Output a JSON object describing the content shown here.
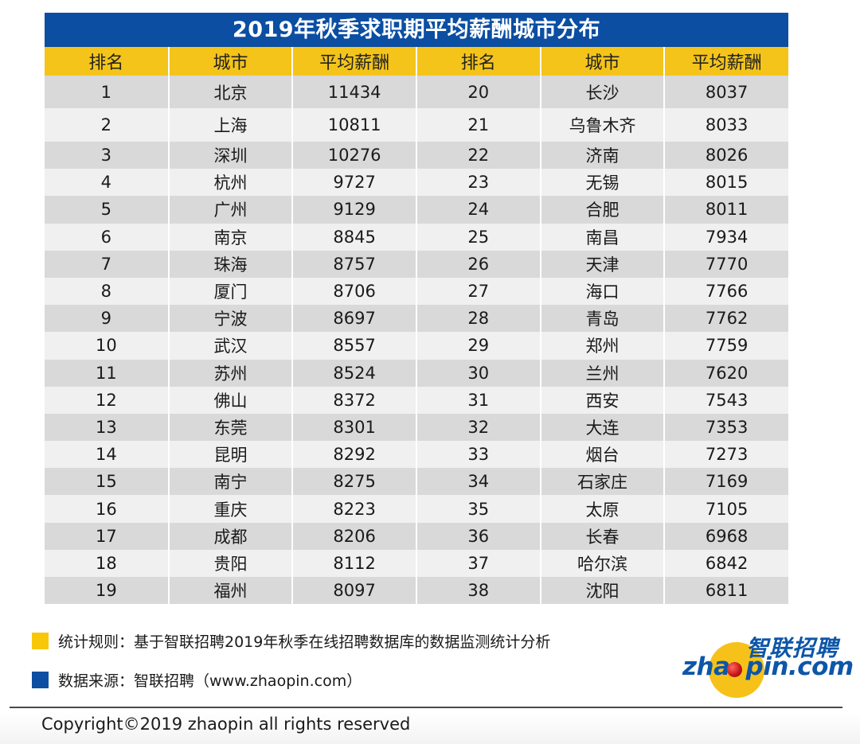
{
  "title": "2019年秋季求职期平均薪酬城市分布",
  "headers": [
    "排名",
    "城市",
    "平均薪酬",
    "排名",
    "城市",
    "平均薪酬"
  ],
  "rows": [
    {
      "left": {
        "rank": "1",
        "city": "北京",
        "salary": "11434"
      },
      "right": {
        "rank": "20",
        "city": "长沙",
        "salary": "8037"
      }
    },
    {
      "left": {
        "rank": "2",
        "city": "上海",
        "salary": "10811"
      },
      "right": {
        "rank": "21",
        "city": "乌鲁木齐",
        "salary": "8033"
      }
    },
    {
      "left": {
        "rank": "3",
        "city": "深圳",
        "salary": "10276"
      },
      "right": {
        "rank": "22",
        "city": "济南",
        "salary": "8026"
      }
    },
    {
      "left": {
        "rank": "4",
        "city": "杭州",
        "salary": "9727"
      },
      "right": {
        "rank": "23",
        "city": "无锡",
        "salary": "8015"
      }
    },
    {
      "left": {
        "rank": "5",
        "city": "广州",
        "salary": "9129"
      },
      "right": {
        "rank": "24",
        "city": "合肥",
        "salary": "8011"
      }
    },
    {
      "left": {
        "rank": "6",
        "city": "南京",
        "salary": "8845"
      },
      "right": {
        "rank": "25",
        "city": "南昌",
        "salary": "7934"
      }
    },
    {
      "left": {
        "rank": "7",
        "city": "珠海",
        "salary": "8757"
      },
      "right": {
        "rank": "26",
        "city": "天津",
        "salary": "7770"
      }
    },
    {
      "left": {
        "rank": "8",
        "city": "厦门",
        "salary": "8706"
      },
      "right": {
        "rank": "27",
        "city": "海口",
        "salary": "7766"
      }
    },
    {
      "left": {
        "rank": "9",
        "city": "宁波",
        "salary": "8697"
      },
      "right": {
        "rank": "28",
        "city": "青岛",
        "salary": "7762"
      }
    },
    {
      "left": {
        "rank": "10",
        "city": "武汉",
        "salary": "8557"
      },
      "right": {
        "rank": "29",
        "city": "郑州",
        "salary": "7759"
      }
    },
    {
      "left": {
        "rank": "11",
        "city": "苏州",
        "salary": "8524"
      },
      "right": {
        "rank": "30",
        "city": "兰州",
        "salary": "7620"
      }
    },
    {
      "left": {
        "rank": "12",
        "city": "佛山",
        "salary": "8372"
      },
      "right": {
        "rank": "31",
        "city": "西安",
        "salary": "7543"
      }
    },
    {
      "left": {
        "rank": "13",
        "city": "东莞",
        "salary": "8301"
      },
      "right": {
        "rank": "32",
        "city": "大连",
        "salary": "7353"
      }
    },
    {
      "left": {
        "rank": "14",
        "city": "昆明",
        "salary": "8292"
      },
      "right": {
        "rank": "33",
        "city": "烟台",
        "salary": "7273"
      }
    },
    {
      "left": {
        "rank": "15",
        "city": "南宁",
        "salary": "8275"
      },
      "right": {
        "rank": "34",
        "city": "石家庄",
        "salary": "7169"
      }
    },
    {
      "left": {
        "rank": "16",
        "city": "重庆",
        "salary": "8223"
      },
      "right": {
        "rank": "35",
        "city": "太原",
        "salary": "7105"
      }
    },
    {
      "left": {
        "rank": "17",
        "city": "成都",
        "salary": "8206"
      },
      "right": {
        "rank": "36",
        "city": "长春",
        "salary": "6968"
      }
    },
    {
      "left": {
        "rank": "18",
        "city": "贵阳",
        "salary": "8112"
      },
      "right": {
        "rank": "37",
        "city": "哈尔滨",
        "salary": "6842"
      }
    },
    {
      "left": {
        "rank": "19",
        "city": "福州",
        "salary": "8097"
      },
      "right": {
        "rank": "38",
        "city": "沈阳",
        "salary": "6811"
      }
    }
  ],
  "legend": [
    {
      "color": "#f8c70a",
      "text": "统计规则：基于智联招聘2019年秋季在线招聘数据库的数据监测统计分析"
    },
    {
      "color": "#0b4ea2",
      "text": "数据来源：智联招聘（www.zhaopin.com）"
    }
  ],
  "logo": {
    "cn": "智联招聘",
    "en_left": "zha",
    "en_right": "pin.com"
  },
  "copyright": "Copyright©2019 zhaopin all rights reserved",
  "colors": {
    "title_bg": "#0b4ea2",
    "header_bg": "#f4c41a",
    "row_dark": "#d9d9d9",
    "row_light": "#f0f0f0"
  }
}
